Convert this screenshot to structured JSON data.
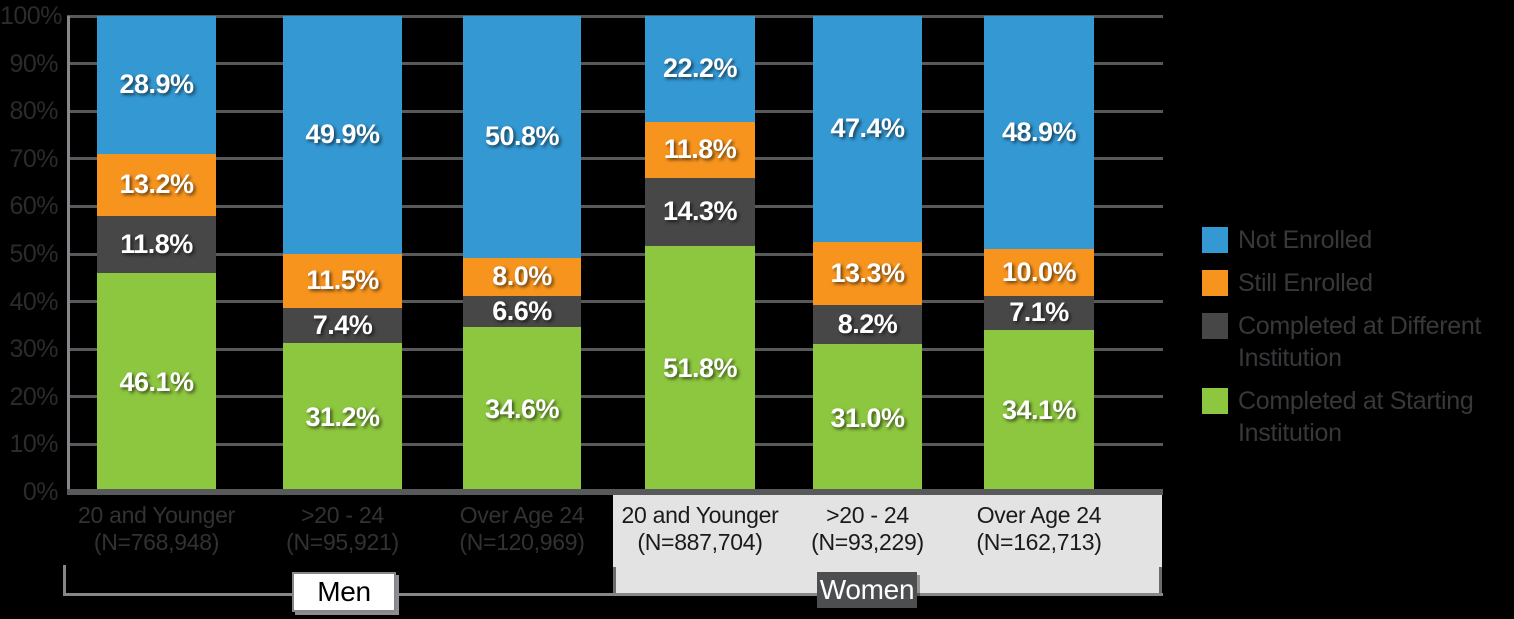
{
  "chart_data": {
    "type": "bar",
    "stacked": true,
    "grid": true,
    "legend_position": "right",
    "ylim": [
      0,
      100
    ],
    "y_ticks": [
      "0%",
      "10%",
      "20%",
      "30%",
      "40%",
      "50%",
      "60%",
      "70%",
      "80%",
      "90%",
      "100%"
    ],
    "categories": [
      {
        "label": "20 and Younger",
        "sublabel": "(N=768,948)",
        "group": "Men"
      },
      {
        "label": ">20 - 24",
        "sublabel": "(N=95,921)",
        "group": "Men"
      },
      {
        "label": "Over Age 24",
        "sublabel": "(N=120,969)",
        "group": "Men"
      },
      {
        "label": "20 and Younger",
        "sublabel": "(N=887,704)",
        "group": "Women"
      },
      {
        "label": ">20 - 24",
        "sublabel": "(N=93,229)",
        "group": "Women"
      },
      {
        "label": "Over Age 24",
        "sublabel": "(N=162,713)",
        "group": "Women"
      }
    ],
    "series": [
      {
        "name": "Not Enrolled",
        "color": "#3498d3",
        "values": [
          28.9,
          49.9,
          50.8,
          22.2,
          47.4,
          48.9
        ]
      },
      {
        "name": "Still Enrolled",
        "color": "#f7941e",
        "values": [
          13.2,
          11.5,
          8.0,
          11.8,
          13.3,
          10.0
        ]
      },
      {
        "name": "Completed at Different Institution",
        "color": "#474747",
        "values": [
          11.8,
          7.4,
          6.6,
          14.3,
          8.2,
          7.1
        ]
      },
      {
        "name": "Completed at Starting Institution",
        "color": "#8dc63f",
        "values": [
          46.1,
          31.2,
          34.6,
          51.8,
          31.0,
          34.1
        ]
      }
    ],
    "groups": [
      {
        "label": "Men"
      },
      {
        "label": "Women"
      }
    ]
  },
  "colors": {
    "background": "#000000",
    "gridline": "#58595b",
    "axis_line": "#85878a",
    "axis_text": "#2b2b2e",
    "men_label_text": "#323235",
    "women_label_text": "#1a1a1a",
    "women_panel": "#e3e3e3",
    "women_box_bg": "#4d4e50",
    "men_box_bg": "#ffffff",
    "legend_text": "#38383b"
  }
}
